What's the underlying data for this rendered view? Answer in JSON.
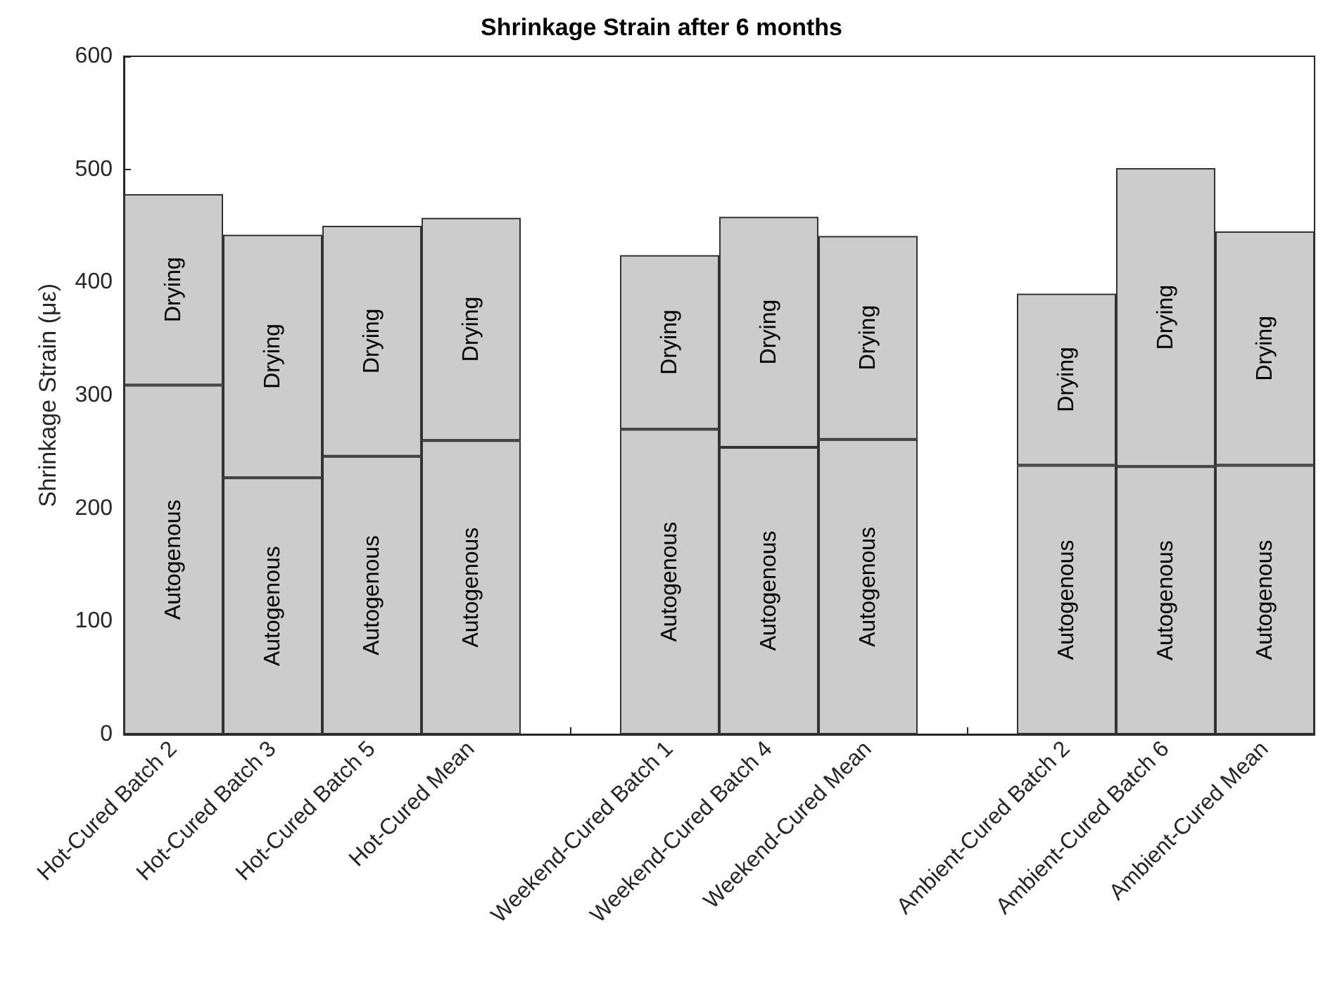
{
  "chart_data": {
    "type": "bar",
    "title": "Shrinkage Strain after 6 months",
    "ylabel": "Shrinkage Strain (με)",
    "categories": [
      "Hot-Cured Batch 2",
      "Hot-Cured Batch 3",
      "Hot-Cured Batch 5",
      "Hot-Cured Mean",
      null,
      "Weekend-Cured Batch 1",
      "Weekend-Cured Batch 4",
      "Weekend-Cured Mean",
      null,
      "Ambient-Cured Batch 2",
      "Ambient-Cured Batch 6",
      "Ambient-Cured Mean"
    ],
    "stacked": true,
    "ylim": [
      0,
      600
    ],
    "yticks": [
      0,
      100,
      200,
      300,
      400,
      500,
      600
    ],
    "grid": false,
    "legend": false,
    "series": [
      {
        "name": "Autogenous",
        "color": "#cccccc",
        "values": [
          309,
          227,
          246,
          260,
          null,
          270,
          254,
          261,
          null,
          238,
          237,
          238
        ]
      },
      {
        "name": "Drying",
        "color": "#cccccc",
        "values": [
          169,
          215,
          204,
          197,
          null,
          154,
          204,
          180,
          null,
          152,
          264,
          207
        ]
      }
    ]
  }
}
